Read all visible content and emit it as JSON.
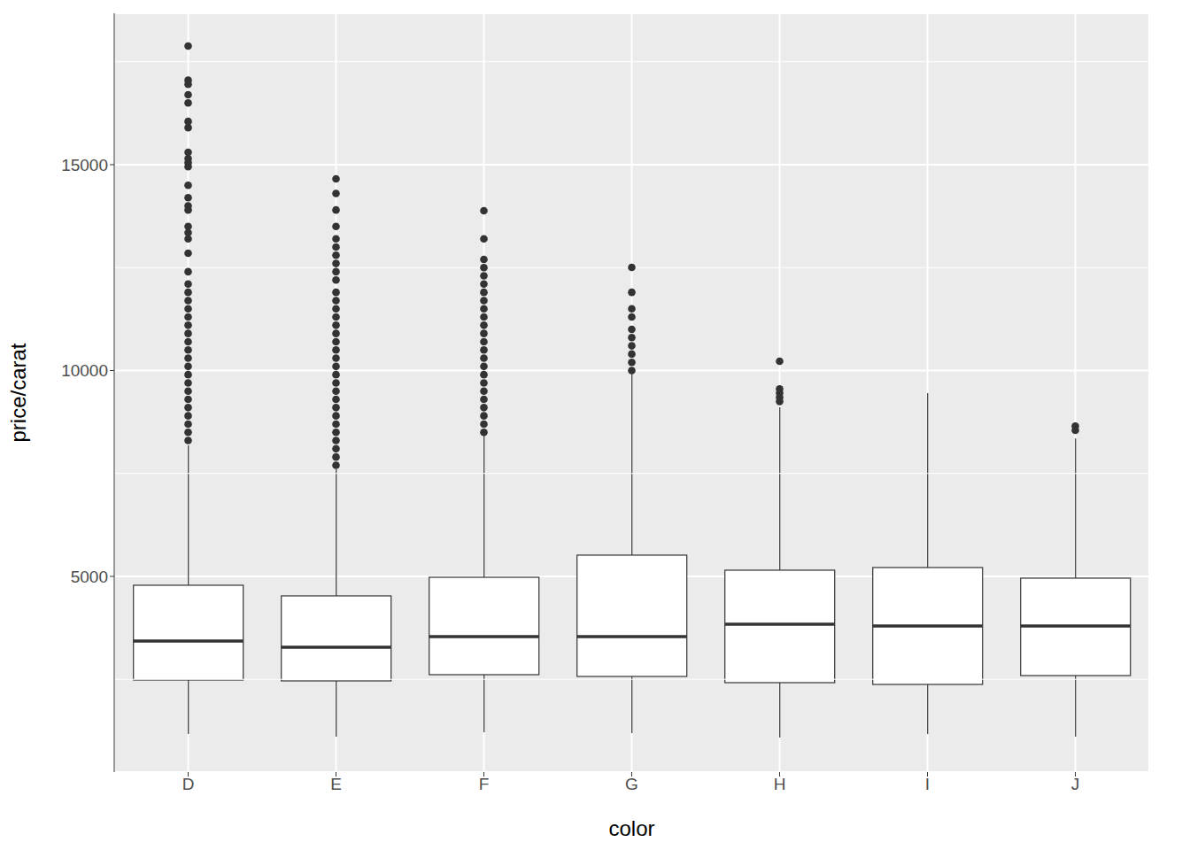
{
  "chart_data": {
    "type": "boxplot",
    "x_label": "color",
    "y_label": "price/carat",
    "categories": [
      "D",
      "E",
      "F",
      "G",
      "H",
      "I",
      "J"
    ],
    "whisker_low": [
      1172,
      1108,
      1215,
      1194,
      1086,
      1172,
      1108
    ],
    "q1": [
      2484,
      2462,
      2613,
      2570,
      2419,
      2376,
      2591
    ],
    "median": [
      3430,
      3280,
      3538,
      3538,
      3839,
      3796,
      3796
    ],
    "q3": [
      4785,
      4527,
      4978,
      5516,
      5151,
      5215,
      4957
    ],
    "whisker_high": [
      8183,
      7602,
      8462,
      9968,
      9108,
      9452,
      8350
    ],
    "outliers": [
      [
        8300,
        8500,
        8700,
        8900,
        9100,
        9300,
        9500,
        9700,
        9900,
        10100,
        10300,
        10500,
        10700,
        10900,
        11100,
        11300,
        11500,
        11700,
        11900,
        12100,
        12400,
        12850,
        13200,
        13350,
        13500,
        13900,
        14000,
        14200,
        14500,
        14950,
        15050,
        15150,
        15300,
        15900,
        16050,
        16500,
        16700,
        16950,
        17050,
        17882
      ],
      [
        7700,
        7900,
        8100,
        8300,
        8500,
        8700,
        8900,
        9100,
        9300,
        9500,
        9700,
        9900,
        10100,
        10300,
        10500,
        10700,
        10900,
        11100,
        11300,
        11500,
        11700,
        11900,
        12200,
        12400,
        12600,
        12800,
        13000,
        13200,
        13500,
        13900,
        14300,
        14656
      ],
      [
        8500,
        8700,
        8900,
        9100,
        9300,
        9500,
        9700,
        9900,
        10100,
        10300,
        10500,
        10700,
        10900,
        11100,
        11300,
        11500,
        11700,
        11900,
        12100,
        12300,
        12500,
        12700,
        13200,
        13882
      ],
      [
        10000,
        10200,
        10400,
        10600,
        10800,
        11000,
        11300,
        11500,
        11900,
        12505
      ],
      [
        9250,
        9350,
        9450,
        9550,
        10226
      ],
      [],
      [
        8550,
        8650
      ]
    ],
    "color": "#333333",
    "ylim": [
      247,
      18677
    ],
    "yticks": [
      5000,
      10000,
      15000
    ],
    "grid": true
  }
}
